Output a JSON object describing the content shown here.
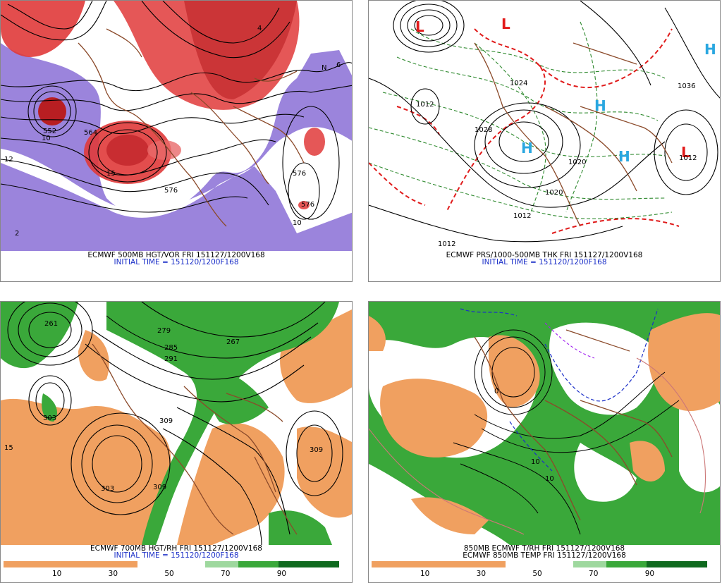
{
  "panels": [
    {
      "caption_line1": "ECMWF 500MB HGT/VOR FRI 151127/1200V168",
      "caption_line2": "INITIAL TIME = 151120/1200F168",
      "contour_labels": [
        "552",
        "564",
        "576",
        "576",
        "576",
        "10",
        "10",
        "12",
        "15",
        "15",
        "4",
        "4",
        "6",
        "8",
        "2",
        "2",
        "N",
        "N"
      ]
    },
    {
      "caption_line1": "ECMWF PRS/1000-500MB THK FRI 151127/1200V168",
      "caption_line2": "INITIAL TIME = 151120/1200F168",
      "contour_labels": [
        "1012",
        "1028",
        "1024",
        "1036",
        "1012",
        "1012",
        "1020",
        "1020",
        "1012",
        "1012"
      ],
      "pressure_centers": [
        "L",
        "L",
        "L",
        "H",
        "H",
        "H",
        "H"
      ]
    },
    {
      "caption_line1": "ECMWF 700MB HGT/RH FRI 151127/1200V168",
      "caption_line2": "INITIAL TIME = 151120/1200F168",
      "contour_labels": [
        "261",
        "267",
        "279",
        "285",
        "291",
        "303",
        "303",
        "309",
        "309",
        "309",
        "15"
      ],
      "scale_ticks": [
        "10",
        "30",
        "50",
        "70",
        "90"
      ]
    },
    {
      "caption_line1": "850MB ECMWF T/RH FRI 151127/1200V168",
      "caption_line2": "ECMWF 850MB TEMP FRI 151127/1200V168",
      "contour_labels": [
        "10",
        "10",
        "0",
        "-10"
      ],
      "scale_ticks": [
        "10",
        "30",
        "50",
        "70",
        "90"
      ]
    }
  ],
  "colors": {
    "vorticity_red": "#e03a3a",
    "vorticity_purple": "#8a6fd6",
    "rh_dry_orange": "#f0a060",
    "rh_moist_green": "#3aa83a",
    "low_marker": "#e21b1b",
    "high_marker": "#2aa7e0",
    "caption_blue": "#1b2fc8"
  }
}
